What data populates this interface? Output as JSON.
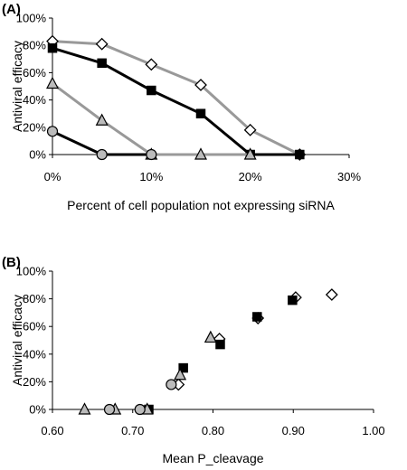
{
  "chart_data": [
    {
      "panel_label": "(A)",
      "type": "line",
      "xlabel": "Percent of cell population not expressing siRNA",
      "ylabel": "Antiviral efficacy",
      "x_ticks": [
        "0%",
        "10%",
        "20%",
        "30%"
      ],
      "y_ticks": [
        "0%",
        "20%",
        "40%",
        "60%",
        "80%",
        "100%"
      ],
      "xlim": [
        0,
        30
      ],
      "ylim": [
        0,
        100
      ],
      "grid": false,
      "series": [
        {
          "marker": "diamond",
          "marker_fill": "#ffffff",
          "line_color": "#999999",
          "x": [
            0,
            5,
            10,
            15,
            20,
            25
          ],
          "y": [
            83,
            81,
            66,
            51,
            18,
            0
          ]
        },
        {
          "marker": "square",
          "marker_fill": "#000000",
          "line_color": "#000000",
          "x": [
            0,
            5,
            10,
            15,
            20,
            25
          ],
          "y": [
            78,
            67,
            47,
            30,
            0,
            0
          ]
        },
        {
          "marker": "triangle",
          "marker_fill": "#bbbbbb",
          "line_color": "#999999",
          "x": [
            0,
            5,
            10,
            15,
            20
          ],
          "y": [
            52,
            25,
            0,
            0,
            0
          ]
        },
        {
          "marker": "circle",
          "marker_fill": "#bbbbbb",
          "line_color": "#000000",
          "x": [
            0,
            5,
            10
          ],
          "y": [
            17,
            0,
            0
          ]
        }
      ]
    },
    {
      "panel_label": "(B)",
      "type": "scatter",
      "xlabel": "Mean P_cleavage",
      "ylabel": "Antiviral efficacy",
      "x_ticks": [
        "0.60",
        "0.70",
        "0.80",
        "0.90",
        "1.00"
      ],
      "y_ticks": [
        "0%",
        "20%",
        "40%",
        "60%",
        "80%",
        "100%"
      ],
      "xlim": [
        0.6,
        1.0
      ],
      "ylim": [
        0,
        100
      ],
      "grid": false,
      "series": [
        {
          "marker": "diamond",
          "marker_fill": "#ffffff",
          "x": [
            0.948,
            0.903,
            0.856,
            0.808,
            0.757
          ],
          "y": [
            83,
            81,
            66,
            51,
            18
          ]
        },
        {
          "marker": "square",
          "marker_fill": "#000000",
          "x": [
            0.899,
            0.855,
            0.809,
            0.763,
            0.72
          ],
          "y": [
            79,
            67,
            47,
            30,
            0
          ]
        },
        {
          "marker": "triangle",
          "marker_fill": "#bbbbbb",
          "x": [
            0.797,
            0.759,
            0.718,
            0.678,
            0.64
          ],
          "y": [
            52,
            25,
            0,
            0,
            0
          ]
        },
        {
          "marker": "circle",
          "marker_fill": "#bbbbbb",
          "x": [
            0.748,
            0.709,
            0.671
          ],
          "y": [
            18,
            0,
            0
          ]
        }
      ]
    }
  ]
}
